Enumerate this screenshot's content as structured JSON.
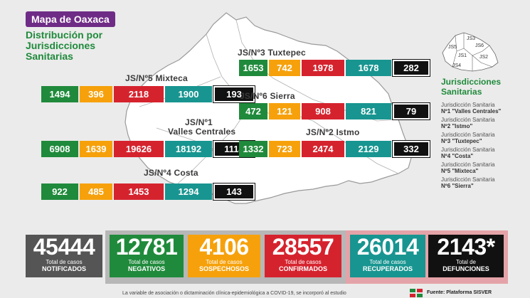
{
  "header": {
    "tag": "Mapa de Oaxaca",
    "subtitle": "Distribución por Jurisdicciones Sanitarias"
  },
  "inset_labels": [
    "JS1",
    "JS2",
    "JS3",
    "JS4",
    "JS5",
    "JS6"
  ],
  "chart_data": {
    "type": "table",
    "columns": [
      "negativos",
      "sospechosos",
      "confirmados",
      "recuperados",
      "defunciones"
    ],
    "jurisdictions": [
      {
        "id": "js3",
        "label": "JS/Nº3 Tuxtepec",
        "values": [
          1653,
          742,
          1978,
          1678,
          282
        ]
      },
      {
        "id": "js5",
        "label": "JS/Nº5 Mixteca",
        "values": [
          1494,
          396,
          2118,
          1900,
          193
        ]
      },
      {
        "id": "js6",
        "label": "JS/Nº6 Sierra",
        "values": [
          472,
          121,
          908,
          821,
          79
        ]
      },
      {
        "id": "js1",
        "label": "JS/Nº1",
        "label2": "Valles Centrales",
        "values": [
          6908,
          1639,
          19626,
          18192,
          1114
        ]
      },
      {
        "id": "js2",
        "label": "JS/Nº2 Istmo",
        "values": [
          1332,
          723,
          2474,
          2129,
          332
        ]
      },
      {
        "id": "js4",
        "label": "JS/Nº4 Costa",
        "values": [
          922,
          485,
          1453,
          1294,
          143
        ]
      }
    ],
    "totals": [
      {
        "id": "notificados",
        "value": "45444",
        "line1": "Total de casos",
        "line2": "NOTIFICADOS"
      },
      {
        "id": "negativos",
        "value": "12781",
        "line1": "Total de casos",
        "line2": "NEGATIVOS"
      },
      {
        "id": "sospechosos",
        "value": "4106",
        "line1": "Total de casos",
        "line2": "SOSPECHOSOS"
      },
      {
        "id": "confirmados",
        "value": "28557",
        "line1": "Total de casos",
        "line2": "CONFIRMADOS"
      },
      {
        "id": "recuperados",
        "value": "26014",
        "line1": "Total de casos",
        "line2": "RECUPERADOS"
      },
      {
        "id": "defunciones",
        "value": "2143*",
        "line1": "Total de",
        "line2": "DEFUNCIONES"
      }
    ]
  },
  "legend": {
    "title": "Jurisdicciones Sanitarias",
    "items": [
      {
        "line1": "Jurisdicción Sanitaria",
        "line2": "Nº1 \"Valles Centrales\""
      },
      {
        "line1": "Jurisdicción Sanitaria",
        "line2": "Nº2 \"Istmo\""
      },
      {
        "line1": "Jurisdicción Sanitaria",
        "line2": "Nº3 \"Tuxtepec\""
      },
      {
        "line1": "Jurisdicción Sanitaria",
        "line2": "Nº4 \"Costa\""
      },
      {
        "line1": "Jurisdicción Sanitaria",
        "line2": "Nº5 \"Mixteca\""
      },
      {
        "line1": "Jurisdicción Sanitaria",
        "line2": "Nº6 \"Sierra\""
      }
    ]
  },
  "colors": {
    "negativos": "#1f8a3b",
    "sospechosos": "#f6a10b",
    "confirmados": "#d5232e",
    "recuperados": "#189590",
    "defunciones": "#111111",
    "notificados": "#555555",
    "frame_left": "#b7b7b7",
    "frame_right": "#e4a3a8"
  },
  "footer": {
    "note": "La variable de asociación o dictaminación clínica-epidemiológica a COVID-19, se incorporó al estudio",
    "source": "Fuente: Plataforma SISVER"
  }
}
